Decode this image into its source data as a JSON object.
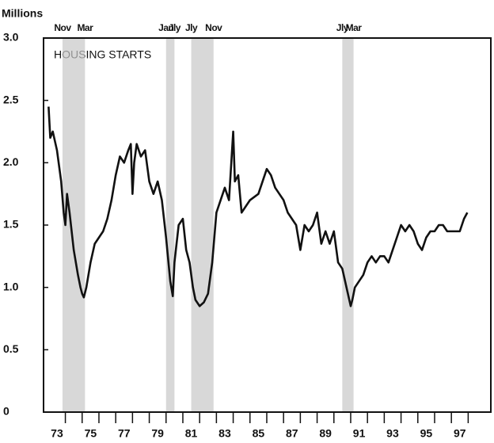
{
  "chart_data": {
    "type": "line",
    "title": "HOUSING STARTS",
    "y_label": "Millions",
    "color": "#111111",
    "shade_color": "#c8c8c8",
    "xlim": [
      1972.7,
      1999.35
    ],
    "ylim": [
      0,
      3
    ],
    "yticks": [
      0,
      0.5,
      {
        "value": 1,
        "label": "1.0"
      },
      {
        "value": 1.5,
        "label": "1.5"
      },
      {
        "value": 2,
        "label": "2.0"
      },
      {
        "value": 2.5,
        "label": "2.5"
      },
      {
        "value": 3,
        "label": "3.0"
      }
    ],
    "xticks": [
      1974,
      1975,
      1976,
      1977,
      1978,
      1979,
      1980,
      1981,
      1982,
      1983,
      1984,
      1985,
      1986,
      1987,
      1988,
      1989,
      1990,
      1991,
      1992,
      1993,
      1994,
      1995,
      1996,
      1997,
      1998
    ],
    "xtick_labels": [
      {
        "value": 1973.5,
        "label": "73"
      },
      {
        "value": 1975.5,
        "label": "75"
      },
      {
        "value": 1977.5,
        "label": "77"
      },
      {
        "value": 1979.5,
        "label": "79"
      },
      {
        "value": 1981.5,
        "label": "81"
      },
      {
        "value": 1983.5,
        "label": "83"
      },
      {
        "value": 1985.5,
        "label": "85"
      },
      {
        "value": 1987.5,
        "label": "87"
      },
      {
        "value": 1989.5,
        "label": "89"
      },
      {
        "value": 1991.5,
        "label": "91"
      },
      {
        "value": 1993.5,
        "label": "93"
      },
      {
        "value": 1995.5,
        "label": "95"
      },
      {
        "value": 1997.5,
        "label": "97"
      }
    ],
    "recessions": [
      {
        "start": 1973.83,
        "end": 1975.17,
        "start_label": "Nov",
        "end_label": "Mar"
      },
      {
        "start": 1980.0,
        "end": 1980.5,
        "start_label": "Jan",
        "end_label": "Jly"
      },
      {
        "start": 1981.5,
        "end": 1982.83,
        "start_label": "Jly",
        "end_label": "Nov"
      },
      {
        "start": 1990.5,
        "end": 1991.17,
        "start_label": "Jly",
        "end_label": "Mar"
      }
    ],
    "x": [
      1973.0,
      1973.1,
      1973.25,
      1973.5,
      1973.75,
      1973.9,
      1974.0,
      1974.1,
      1974.25,
      1974.5,
      1974.75,
      1974.9,
      1975.0,
      1975.1,
      1975.25,
      1975.5,
      1975.75,
      1976.0,
      1976.25,
      1976.5,
      1976.75,
      1977.0,
      1977.25,
      1977.5,
      1977.75,
      1977.9,
      1978.0,
      1978.1,
      1978.25,
      1978.5,
      1978.75,
      1979.0,
      1979.25,
      1979.5,
      1979.75,
      1980.0,
      1980.25,
      1980.4,
      1980.5,
      1980.75,
      1981.0,
      1981.2,
      1981.4,
      1981.6,
      1981.75,
      1982.0,
      1982.25,
      1982.5,
      1982.75,
      1983.0,
      1983.25,
      1983.5,
      1983.75,
      1984.0,
      1984.1,
      1984.3,
      1984.5,
      1984.75,
      1985.0,
      1985.5,
      1986.0,
      1986.25,
      1986.5,
      1986.75,
      1987.0,
      1987.25,
      1987.5,
      1987.75,
      1988.0,
      1988.25,
      1988.5,
      1988.75,
      1989.0,
      1989.25,
      1989.5,
      1989.75,
      1990.0,
      1990.25,
      1990.5,
      1990.75,
      1991.0,
      1991.1,
      1991.25,
      1991.5,
      1991.75,
      1992.0,
      1992.25,
      1992.5,
      1992.75,
      1993.0,
      1993.25,
      1993.5,
      1993.75,
      1994.0,
      1994.25,
      1994.5,
      1994.75,
      1995.0,
      1995.25,
      1995.5,
      1995.75,
      1996.0,
      1996.25,
      1996.5,
      1996.75,
      1997.0,
      1997.25,
      1997.5,
      1997.75,
      1997.95
    ],
    "values": [
      2.45,
      2.2,
      2.25,
      2.1,
      1.85,
      1.6,
      1.5,
      1.75,
      1.6,
      1.3,
      1.1,
      1.0,
      0.95,
      0.92,
      1.0,
      1.2,
      1.35,
      1.4,
      1.45,
      1.55,
      1.7,
      1.9,
      2.05,
      2.0,
      2.1,
      2.15,
      1.75,
      2.0,
      2.15,
      2.05,
      2.1,
      1.85,
      1.75,
      1.85,
      1.7,
      1.4,
      1.05,
      0.93,
      1.2,
      1.5,
      1.55,
      1.3,
      1.2,
      1.0,
      0.9,
      0.85,
      0.88,
      0.95,
      1.2,
      1.6,
      1.7,
      1.8,
      1.7,
      2.25,
      1.85,
      1.9,
      1.6,
      1.65,
      1.7,
      1.75,
      1.95,
      1.9,
      1.8,
      1.75,
      1.7,
      1.6,
      1.55,
      1.5,
      1.3,
      1.5,
      1.45,
      1.5,
      1.6,
      1.35,
      1.45,
      1.35,
      1.45,
      1.2,
      1.15,
      1.0,
      0.85,
      0.9,
      1.0,
      1.05,
      1.1,
      1.2,
      1.25,
      1.2,
      1.25,
      1.25,
      1.2,
      1.3,
      1.4,
      1.5,
      1.45,
      1.5,
      1.45,
      1.35,
      1.3,
      1.4,
      1.45,
      1.45,
      1.5,
      1.5,
      1.45,
      1.45,
      1.45,
      1.45,
      1.55,
      1.6
    ]
  }
}
